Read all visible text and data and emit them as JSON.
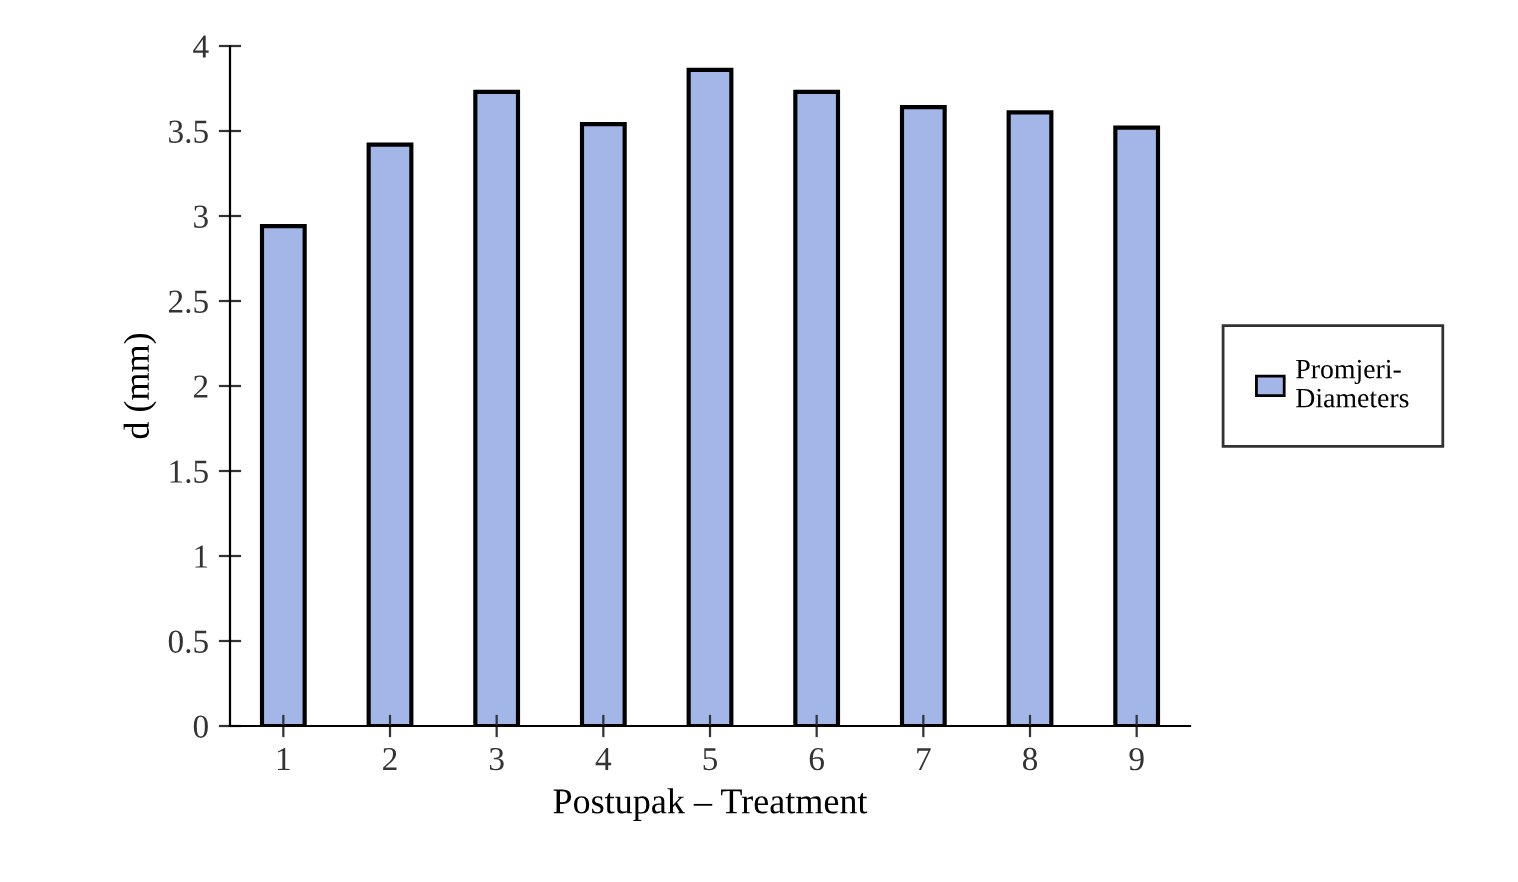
{
  "chart_data": {
    "type": "bar",
    "xlabel": "Postupak – Treatment",
    "ylabel": "d (mm)",
    "categories": [
      "1",
      "2",
      "3",
      "4",
      "5",
      "6",
      "7",
      "8",
      "9"
    ],
    "series": [
      {
        "name": "Promjeri-\nDiameters",
        "color": "#a3b6e8",
        "values": [
          2.94,
          3.42,
          3.73,
          3.54,
          3.86,
          3.73,
          3.64,
          3.61,
          3.52
        ]
      }
    ],
    "ylim": [
      0,
      4
    ],
    "yticks": [
      0,
      0.5,
      1,
      1.5,
      2,
      2.5,
      3,
      3.5,
      4
    ],
    "grid": false,
    "legend": "right"
  }
}
